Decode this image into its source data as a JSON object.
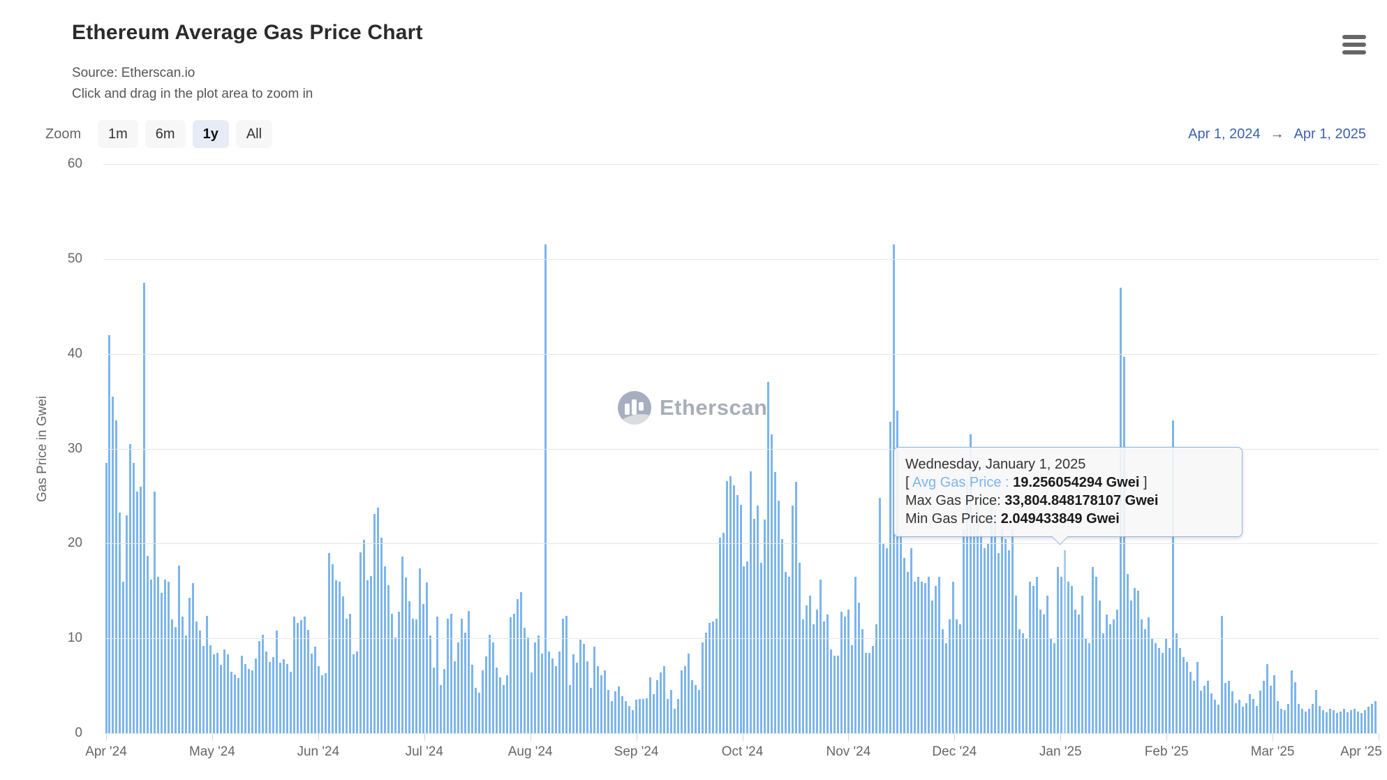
{
  "header": {
    "title": "Ethereum Average Gas Price Chart",
    "source": "Source: Etherscan.io",
    "hint": "Click and drag in the plot area to zoom in"
  },
  "toolbar": {
    "zoom_label": "Zoom",
    "buttons": [
      {
        "label": "1m",
        "active": false
      },
      {
        "label": "6m",
        "active": false
      },
      {
        "label": "1y",
        "active": true
      },
      {
        "label": "All",
        "active": false
      }
    ],
    "range": {
      "from": "Apr 1, 2024",
      "arrow": "→",
      "to": "Apr 1, 2025"
    }
  },
  "watermark": {
    "brand": "Etherscan"
  },
  "tooltip": {
    "date": "Wednesday, January 1, 2025",
    "open_bracket": "[ ",
    "avg_label": "Avg Gas Price :",
    "avg_value": "19.256054294 Gwei",
    "close_bracket": " ]",
    "max_label": "Max Gas Price:",
    "max_value": "33,804.848178107 Gwei",
    "min_label": "Min Gas Price:",
    "min_value": "2.049433849 Gwei"
  },
  "colors": {
    "bar": "#7cb5ec",
    "bar_highlight": "#aacdf3",
    "grid": "#e6e6e6",
    "axis_line": "#ccd6eb",
    "link_blue": "#3a62b0",
    "active_button_bg": "#e6ebf5"
  },
  "chart_data": {
    "type": "bar",
    "title": "Ethereum Average Gas Price Chart",
    "ylabel": "Gas Price in Gwei",
    "unit": "Gwei",
    "series_name": "Avg Gas Price",
    "ylim": [
      0,
      60
    ],
    "y_ticks": [
      0,
      10,
      20,
      30,
      40,
      50,
      60
    ],
    "grid": true,
    "x_tick_labels": [
      "Apr '24",
      "May '24",
      "Jun '24",
      "Jul '24",
      "Aug '24",
      "Sep '24",
      "Oct '24",
      "Nov '24",
      "Dec '24",
      "Jan '25",
      "Feb '25",
      "Mar '25",
      "Apr '25"
    ],
    "start_date": "2024-04-01",
    "end_date": "2025-03-31",
    "interval": "daily",
    "highlight": {
      "date": "2025-01-01",
      "index": 275,
      "avg": 19.256054294,
      "max": 33804.848178107,
      "min": 2.049433849
    },
    "values": [
      28.5,
      42,
      35.5,
      33,
      23.3,
      16,
      23,
      30.5,
      28.5,
      25.5,
      26,
      47.5,
      18.7,
      16.2,
      25.5,
      16.5,
      14.8,
      16.2,
      16,
      12,
      11.2,
      17.7,
      12.3,
      10.3,
      14.3,
      15.8,
      11.8,
      10.8,
      9.2,
      12.4,
      9.3,
      8.3,
      8.5,
      7.2,
      8.8,
      8.3,
      6.5,
      6.2,
      5.8,
      8.2,
      7.3,
      6.8,
      6.6,
      7.9,
      9.7,
      10.4,
      8.6,
      7.5,
      8,
      10.8,
      7.4,
      7.8,
      7.3,
      6.5,
      12.3,
      11.6,
      11.9,
      12.3,
      10.9,
      8.4,
      9.1,
      7.1,
      6.1,
      6.3,
      19,
      17.8,
      16.1,
      16,
      14.4,
      12.1,
      12.6,
      8.3,
      8.6,
      19.1,
      20.4,
      16.1,
      16.6,
      23.1,
      23.8,
      20.6,
      17.6,
      15.6,
      12.6,
      10.1,
      12.8,
      18.6,
      16.4,
      13.9,
      12.1,
      12,
      17.4,
      13.6,
      15.9,
      10.3,
      6.9,
      12.3,
      5.1,
      6.8,
      12.1,
      12.6,
      7.6,
      9.6,
      12.1,
      10.6,
      12.9,
      7.2,
      4.8,
      4.3,
      6.6,
      8.1,
      10.4,
      9.6,
      6.9,
      5.9,
      5.1,
      6.1,
      12.2,
      12.6,
      14.1,
      14.9,
      11.1,
      10.1,
      6.4,
      9.6,
      10.3,
      8.4,
      51.5,
      8.6,
      7.9,
      7.1,
      8.6,
      12.1,
      12.4,
      5.1,
      8.3,
      7.4,
      9.9,
      9.4,
      7.6,
      4.8,
      9.1,
      7.1,
      6.1,
      6.6,
      4.6,
      3.4,
      4.4,
      4.9,
      3.9,
      3.4,
      2.9,
      2.4,
      3.5,
      3.6,
      3.6,
      3.7,
      5.9,
      4.1,
      5.6,
      6.4,
      7.1,
      3.6,
      4.6,
      2.6,
      3.6,
      6.6,
      7.1,
      8.4,
      5.6,
      5.1,
      4.6,
      9.6,
      10.6,
      11.6,
      11.8,
      12.1,
      20.6,
      21.1,
      26.6,
      27.1,
      26.1,
      25.1,
      24.1,
      17.6,
      18.1,
      27.6,
      22.6,
      24,
      18,
      22.5,
      37,
      31.5,
      27.5,
      24.5,
      20.5,
      17,
      16.5,
      24,
      26.5,
      18,
      12,
      13.5,
      14.5,
      11.5,
      13,
      16.2,
      11.8,
      12.5,
      8.8,
      8.2,
      8.2,
      12.8,
      12.3,
      13,
      9.3,
      16.5,
      13.8,
      11,
      8.5,
      8.5,
      9.2,
      11.5,
      24.8,
      20,
      19.5,
      32.8,
      51.5,
      34,
      21,
      18.5,
      17,
      19.5,
      16,
      16.5,
      16,
      15.8,
      16.5,
      14,
      15.5,
      16.5,
      11,
      9.5,
      12,
      16,
      12,
      11.5,
      21.5,
      26.5,
      31.5,
      22,
      24,
      21,
      19.5,
      20,
      24,
      23.5,
      19,
      21.5,
      20.5,
      19.3,
      21.5,
      14.5,
      11,
      10.5,
      10,
      16,
      15.5,
      16.5,
      13,
      12.5,
      14.5,
      10,
      9.5,
      17.5,
      16.5,
      19.256054294,
      16,
      15.5,
      13,
      12.5,
      14.5,
      10,
      9.5,
      17.5,
      16.5,
      14,
      10.5,
      12.5,
      11.5,
      12,
      13,
      47,
      39.7,
      16.8,
      14,
      15.3,
      15,
      12,
      11,
      12.2,
      10,
      9.5,
      9,
      8.5,
      10,
      9,
      33,
      10.5,
      9,
      8,
      7.5,
      6.5,
      5.5,
      7.5,
      4.5,
      5,
      5.5,
      4.2,
      3.5,
      3,
      12.4,
      5.3,
      5.5,
      4.4,
      3.2,
      3.5,
      2.8,
      3.2,
      4.1,
      3.6,
      2.9,
      4.5,
      5.5,
      7.3,
      5,
      6.1,
      3.4,
      2.6,
      2.4,
      3.1,
      6.6,
      5.4,
      3.1,
      2.6,
      2.3,
      2.6,
      3.1,
      4.6,
      2.9,
      2.4,
      2.2,
      2.6,
      2.4,
      2.1,
      2.3,
      2.6,
      2.2,
      2.4,
      2.6,
      2.3,
      2.1,
      2.4,
      2.8,
      3.1,
      3.4
    ]
  }
}
